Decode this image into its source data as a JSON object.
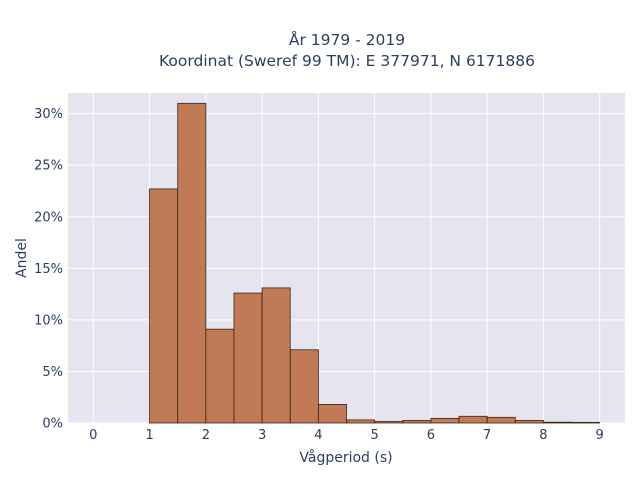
{
  "chart_data": {
    "type": "bar",
    "title_lines": [
      "År 1979 - 2019",
      "Koordinat (Sweref 99 TM): E 377971, N 6171886"
    ],
    "xlabel": "Vågperiod (s)",
    "ylabel": "Andel",
    "xlim": [
      -0.45,
      9.45
    ],
    "ylim": [
      0,
      0.32
    ],
    "x_ticks": [
      0,
      1,
      2,
      3,
      4,
      5,
      6,
      7,
      8,
      9
    ],
    "x_tick_labels": [
      "0",
      "1",
      "2",
      "3",
      "4",
      "5",
      "6",
      "7",
      "8",
      "9"
    ],
    "y_ticks": [
      0,
      0.05,
      0.1,
      0.15,
      0.2,
      0.25,
      0.3
    ],
    "y_tick_labels": [
      "0%",
      "5%",
      "10%",
      "15%",
      "20%",
      "25%",
      "30%"
    ],
    "bin_width": 0.5,
    "bins": [
      {
        "x0": 1.0,
        "x1": 1.5,
        "value": 0.227
      },
      {
        "x0": 1.5,
        "x1": 2.0,
        "value": 0.31
      },
      {
        "x0": 2.0,
        "x1": 2.5,
        "value": 0.091
      },
      {
        "x0": 2.5,
        "x1": 3.0,
        "value": 0.126
      },
      {
        "x0": 3.0,
        "x1": 3.5,
        "value": 0.131
      },
      {
        "x0": 3.5,
        "x1": 4.0,
        "value": 0.071
      },
      {
        "x0": 4.0,
        "x1": 4.5,
        "value": 0.018
      },
      {
        "x0": 4.5,
        "x1": 5.0,
        "value": 0.003
      },
      {
        "x0": 5.0,
        "x1": 5.5,
        "value": 0.0015
      },
      {
        "x0": 5.5,
        "x1": 6.0,
        "value": 0.0025
      },
      {
        "x0": 6.0,
        "x1": 6.5,
        "value": 0.0045
      },
      {
        "x0": 6.5,
        "x1": 7.0,
        "value": 0.0065
      },
      {
        "x0": 7.0,
        "x1": 7.5,
        "value": 0.0055
      },
      {
        "x0": 7.5,
        "x1": 8.0,
        "value": 0.0025
      },
      {
        "x0": 8.0,
        "x1": 8.5,
        "value": 0.0008
      },
      {
        "x0": 8.5,
        "x1": 9.0,
        "value": 0.0006
      }
    ],
    "grid": true,
    "bar_color": "#c07a55",
    "plot_background": "#e5e5f0"
  }
}
